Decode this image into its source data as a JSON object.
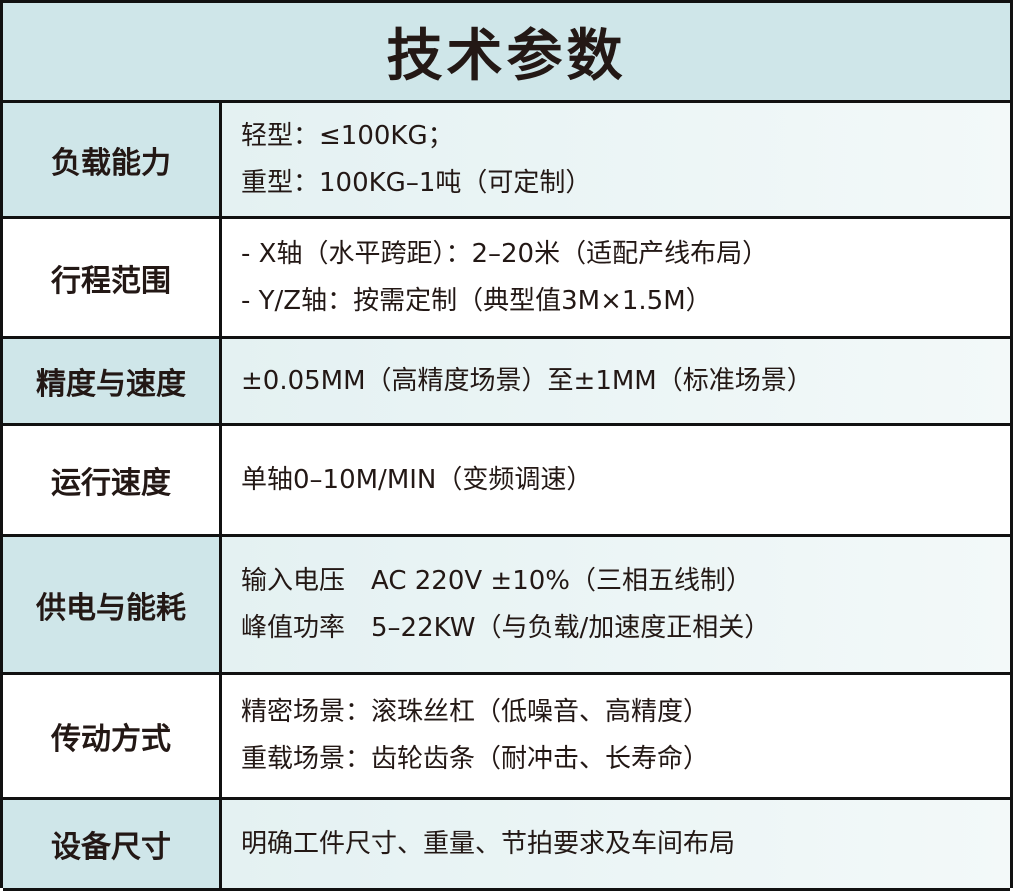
{
  "title": "技术参数",
  "rows": [
    {
      "label": "负载能力",
      "lines": [
        "轻型：≤100KG；",
        "重型：100KG–1吨（可定制）"
      ]
    },
    {
      "label": "行程范围",
      "lines": [
        "- X轴（水平跨距）：2–20米（适配产线布局）",
        "- Y/Z轴：按需定制（典型值3M×1.5M）"
      ]
    },
    {
      "label": "精度与速度",
      "lines": [
        "±0.05MM（高精度场景）至±1MM（标准场景）"
      ]
    },
    {
      "label": "运行速度",
      "lines": [
        "单轴0–10M/MIN（变频调速）"
      ]
    },
    {
      "label": "供电与能耗",
      "lines": [
        "输入电压　AC 220V ±10%（三相五线制）",
        "峰值功率　5–22KW（与负载/加速度正相关）"
      ]
    },
    {
      "label": "传动方式",
      "lines": [
        "精密场景：滚珠丝杠（低噪音、高精度）",
        "重载场景：齿轮齿条（耐冲击、长寿命）"
      ]
    },
    {
      "label": "设备尺寸",
      "lines": [
        "明确工件尺寸、重量、节拍要求及车间布局"
      ]
    }
  ],
  "colors": {
    "header_bg": "#cfe6e9",
    "border": "#111111",
    "text": "#231815"
  }
}
